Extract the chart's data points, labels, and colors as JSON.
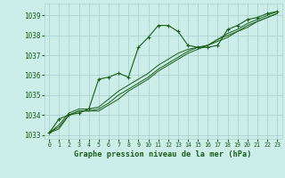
{
  "title": "Graphe pression niveau de la mer (hPa)",
  "bg_color": "#cceee8",
  "grid_color": "#aad4ce",
  "line_color": "#1a5c1a",
  "xlim": [
    -0.5,
    23.5
  ],
  "ylim": [
    1032.8,
    1039.6
  ],
  "yticks": [
    1033,
    1034,
    1035,
    1036,
    1037,
    1038,
    1039
  ],
  "xticks": [
    0,
    1,
    2,
    3,
    4,
    5,
    6,
    7,
    8,
    9,
    10,
    11,
    12,
    13,
    14,
    15,
    16,
    17,
    18,
    19,
    20,
    21,
    22,
    23
  ],
  "series": [
    [
      1033.1,
      1033.8,
      1034.0,
      1034.1,
      1034.3,
      1035.8,
      1035.9,
      1036.1,
      1035.9,
      1037.4,
      1037.9,
      1038.5,
      1038.5,
      1038.2,
      1037.5,
      1037.4,
      1037.4,
      1037.5,
      1038.3,
      1038.5,
      1038.8,
      1038.9,
      1039.1,
      1039.2
    ],
    [
      1033.1,
      1033.5,
      1034.1,
      1034.3,
      1034.3,
      1034.4,
      1034.8,
      1035.2,
      1035.5,
      1035.8,
      1036.1,
      1036.5,
      1036.8,
      1037.1,
      1037.3,
      1037.4,
      1037.5,
      1037.8,
      1038.1,
      1038.3,
      1038.6,
      1038.8,
      1039.0,
      1039.2
    ],
    [
      1033.1,
      1033.4,
      1034.0,
      1034.2,
      1034.2,
      1034.3,
      1034.6,
      1035.0,
      1035.3,
      1035.6,
      1035.9,
      1036.3,
      1036.6,
      1036.9,
      1037.2,
      1037.4,
      1037.5,
      1037.8,
      1038.0,
      1038.2,
      1038.5,
      1038.7,
      1038.9,
      1039.1
    ],
    [
      1033.1,
      1033.3,
      1034.0,
      1034.2,
      1034.2,
      1034.2,
      1034.5,
      1034.8,
      1035.2,
      1035.5,
      1035.8,
      1036.2,
      1036.5,
      1036.8,
      1037.1,
      1037.3,
      1037.5,
      1037.7,
      1037.9,
      1038.2,
      1038.4,
      1038.7,
      1038.9,
      1039.1
    ]
  ]
}
